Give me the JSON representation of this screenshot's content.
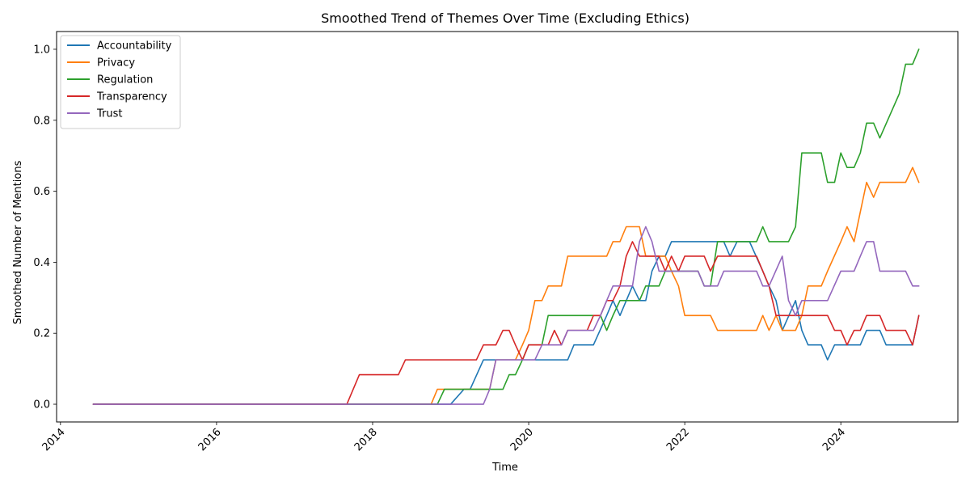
{
  "chart_data": {
    "type": "line",
    "title": "Smoothed Trend of Themes Over Time (Excluding Ethics)",
    "xlabel": "Time",
    "ylabel": "Smoothed Number of Mentions",
    "xlim": [
      2013.95,
      2025.5
    ],
    "ylim": [
      -0.05,
      1.05
    ],
    "x_ticks": [
      2014,
      2016,
      2018,
      2020,
      2022,
      2024
    ],
    "x_tick_labels": [
      "2014",
      "2016",
      "2018",
      "2020",
      "2022",
      "2024"
    ],
    "y_ticks": [
      0.0,
      0.2,
      0.4,
      0.6,
      0.8,
      1.0
    ],
    "y_tick_labels": [
      "0.0",
      "0.2",
      "0.4",
      "0.6",
      "0.8",
      "1.0"
    ],
    "grid": false,
    "legend_position": "top-left",
    "series": [
      {
        "name": "Accountability",
        "color": "#1f77b4",
        "points": [
          [
            2014.42,
            0
          ],
          [
            2018.83,
            0
          ],
          [
            2019.0,
            0
          ],
          [
            2019.17,
            0.042
          ],
          [
            2019.25,
            0.042
          ],
          [
            2019.42,
            0.125
          ],
          [
            2019.92,
            0.125
          ],
          [
            2020.0,
            0.125
          ],
          [
            2020.42,
            0.125
          ],
          [
            2020.5,
            0.125
          ],
          [
            2020.58,
            0.167
          ],
          [
            2020.83,
            0.167
          ],
          [
            2021.0,
            0.25
          ],
          [
            2021.08,
            0.292
          ],
          [
            2021.17,
            0.25
          ],
          [
            2021.33,
            0.333
          ],
          [
            2021.42,
            0.292
          ],
          [
            2021.5,
            0.292
          ],
          [
            2021.58,
            0.375
          ],
          [
            2021.67,
            0.417
          ],
          [
            2021.75,
            0.417
          ],
          [
            2021.83,
            0.458
          ],
          [
            2022.42,
            0.458
          ],
          [
            2022.5,
            0.458
          ],
          [
            2022.58,
            0.417
          ],
          [
            2022.67,
            0.458
          ],
          [
            2022.83,
            0.458
          ],
          [
            2023.0,
            0.375
          ],
          [
            2023.08,
            0.333
          ],
          [
            2023.17,
            0.292
          ],
          [
            2023.25,
            0.208
          ],
          [
            2023.42,
            0.292
          ],
          [
            2023.5,
            0.208
          ],
          [
            2023.58,
            0.167
          ],
          [
            2023.75,
            0.167
          ],
          [
            2023.83,
            0.125
          ],
          [
            2023.92,
            0.167
          ],
          [
            2024.25,
            0.167
          ],
          [
            2024.33,
            0.208
          ],
          [
            2024.5,
            0.208
          ],
          [
            2024.58,
            0.167
          ],
          [
            2024.92,
            0.167
          ],
          [
            2025.0,
            0.25
          ]
        ]
      },
      {
        "name": "Privacy",
        "color": "#ff7f0e",
        "points": [
          [
            2014.42,
            0
          ],
          [
            2018.75,
            0
          ],
          [
            2018.83,
            0.042
          ],
          [
            2019.5,
            0.042
          ],
          [
            2019.58,
            0.125
          ],
          [
            2019.83,
            0.125
          ],
          [
            2019.92,
            0.167
          ],
          [
            2020.0,
            0.208
          ],
          [
            2020.08,
            0.292
          ],
          [
            2020.17,
            0.292
          ],
          [
            2020.25,
            0.333
          ],
          [
            2020.42,
            0.333
          ],
          [
            2020.5,
            0.417
          ],
          [
            2021.0,
            0.417
          ],
          [
            2021.08,
            0.458
          ],
          [
            2021.17,
            0.458
          ],
          [
            2021.25,
            0.5
          ],
          [
            2021.42,
            0.5
          ],
          [
            2021.5,
            0.417
          ],
          [
            2021.75,
            0.417
          ],
          [
            2021.83,
            0.375
          ],
          [
            2021.92,
            0.333
          ],
          [
            2022.0,
            0.25
          ],
          [
            2022.33,
            0.25
          ],
          [
            2022.42,
            0.208
          ],
          [
            2022.92,
            0.208
          ],
          [
            2023.0,
            0.25
          ],
          [
            2023.08,
            0.208
          ],
          [
            2023.17,
            0.25
          ],
          [
            2023.25,
            0.208
          ],
          [
            2023.42,
            0.208
          ],
          [
            2023.5,
            0.25
          ],
          [
            2023.58,
            0.333
          ],
          [
            2023.75,
            0.333
          ],
          [
            2023.83,
            0.375
          ],
          [
            2024.0,
            0.458
          ],
          [
            2024.08,
            0.5
          ],
          [
            2024.17,
            0.458
          ],
          [
            2024.25,
            0.542
          ],
          [
            2024.33,
            0.625
          ],
          [
            2024.42,
            0.583
          ],
          [
            2024.5,
            0.625
          ],
          [
            2024.83,
            0.625
          ],
          [
            2024.92,
            0.667
          ],
          [
            2025.0,
            0.625
          ]
        ]
      },
      {
        "name": "Regulation",
        "color": "#2ca02c",
        "points": [
          [
            2014.42,
            0
          ],
          [
            2018.83,
            0
          ],
          [
            2018.92,
            0.042
          ],
          [
            2019.58,
            0.042
          ],
          [
            2019.67,
            0.042
          ],
          [
            2019.75,
            0.083
          ],
          [
            2019.83,
            0.083
          ],
          [
            2019.92,
            0.125
          ],
          [
            2020.0,
            0.167
          ],
          [
            2020.17,
            0.167
          ],
          [
            2020.25,
            0.25
          ],
          [
            2020.83,
            0.25
          ],
          [
            2020.92,
            0.25
          ],
          [
            2021.0,
            0.208
          ],
          [
            2021.08,
            0.25
          ],
          [
            2021.17,
            0.292
          ],
          [
            2021.42,
            0.292
          ],
          [
            2021.5,
            0.333
          ],
          [
            2021.67,
            0.333
          ],
          [
            2021.75,
            0.375
          ],
          [
            2022.17,
            0.375
          ],
          [
            2022.25,
            0.333
          ],
          [
            2022.33,
            0.333
          ],
          [
            2022.42,
            0.458
          ],
          [
            2022.92,
            0.458
          ],
          [
            2023.0,
            0.5
          ],
          [
            2023.08,
            0.458
          ],
          [
            2023.33,
            0.458
          ],
          [
            2023.42,
            0.5
          ],
          [
            2023.5,
            0.708
          ],
          [
            2023.75,
            0.708
          ],
          [
            2023.83,
            0.625
          ],
          [
            2023.92,
            0.625
          ],
          [
            2024.0,
            0.708
          ],
          [
            2024.08,
            0.667
          ],
          [
            2024.17,
            0.667
          ],
          [
            2024.25,
            0.708
          ],
          [
            2024.33,
            0.792
          ],
          [
            2024.42,
            0.792
          ],
          [
            2024.5,
            0.75
          ],
          [
            2024.75,
            0.875
          ],
          [
            2024.83,
            0.958
          ],
          [
            2024.92,
            0.958
          ],
          [
            2025.0,
            1.0
          ]
        ]
      },
      {
        "name": "Transparency",
        "color": "#d62728",
        "points": [
          [
            2014.42,
            0
          ],
          [
            2017.67,
            0
          ],
          [
            2017.83,
            0.083
          ],
          [
            2018.33,
            0.083
          ],
          [
            2018.42,
            0.125
          ],
          [
            2019.33,
            0.125
          ],
          [
            2019.42,
            0.167
          ],
          [
            2019.58,
            0.167
          ],
          [
            2019.67,
            0.208
          ],
          [
            2019.75,
            0.208
          ],
          [
            2019.83,
            0.167
          ],
          [
            2019.92,
            0.125
          ],
          [
            2020.0,
            0.167
          ],
          [
            2020.25,
            0.167
          ],
          [
            2020.33,
            0.208
          ],
          [
            2020.42,
            0.167
          ],
          [
            2020.5,
            0.208
          ],
          [
            2020.75,
            0.208
          ],
          [
            2020.83,
            0.25
          ],
          [
            2020.92,
            0.25
          ],
          [
            2021.0,
            0.292
          ],
          [
            2021.08,
            0.292
          ],
          [
            2021.17,
            0.333
          ],
          [
            2021.25,
            0.417
          ],
          [
            2021.33,
            0.458
          ],
          [
            2021.42,
            0.417
          ],
          [
            2021.67,
            0.417
          ],
          [
            2021.75,
            0.375
          ],
          [
            2021.83,
            0.417
          ],
          [
            2021.92,
            0.375
          ],
          [
            2022.0,
            0.417
          ],
          [
            2022.25,
            0.417
          ],
          [
            2022.33,
            0.375
          ],
          [
            2022.42,
            0.417
          ],
          [
            2022.92,
            0.417
          ],
          [
            2023.0,
            0.375
          ],
          [
            2023.08,
            0.333
          ],
          [
            2023.17,
            0.25
          ],
          [
            2023.83,
            0.25
          ],
          [
            2023.92,
            0.208
          ],
          [
            2024.0,
            0.208
          ],
          [
            2024.08,
            0.167
          ],
          [
            2024.17,
            0.208
          ],
          [
            2024.25,
            0.208
          ],
          [
            2024.33,
            0.25
          ],
          [
            2024.5,
            0.25
          ],
          [
            2024.58,
            0.208
          ],
          [
            2024.83,
            0.208
          ],
          [
            2024.92,
            0.167
          ],
          [
            2025.0,
            0.25
          ]
        ]
      },
      {
        "name": "Trust",
        "color": "#9467bd",
        "points": [
          [
            2014.42,
            0
          ],
          [
            2019.42,
            0
          ],
          [
            2019.5,
            0.042
          ],
          [
            2019.58,
            0.125
          ],
          [
            2019.67,
            0.125
          ],
          [
            2020.08,
            0.125
          ],
          [
            2020.17,
            0.167
          ],
          [
            2020.42,
            0.167
          ],
          [
            2020.5,
            0.208
          ],
          [
            2020.83,
            0.208
          ],
          [
            2020.92,
            0.25
          ],
          [
            2021.0,
            0.292
          ],
          [
            2021.08,
            0.333
          ],
          [
            2021.33,
            0.333
          ],
          [
            2021.42,
            0.458
          ],
          [
            2021.5,
            0.5
          ],
          [
            2021.58,
            0.458
          ],
          [
            2021.67,
            0.375
          ],
          [
            2022.08,
            0.375
          ],
          [
            2022.17,
            0.375
          ],
          [
            2022.25,
            0.333
          ],
          [
            2022.42,
            0.333
          ],
          [
            2022.5,
            0.375
          ],
          [
            2022.92,
            0.375
          ],
          [
            2023.0,
            0.333
          ],
          [
            2023.08,
            0.333
          ],
          [
            2023.25,
            0.417
          ],
          [
            2023.33,
            0.292
          ],
          [
            2023.42,
            0.25
          ],
          [
            2023.5,
            0.292
          ],
          [
            2023.83,
            0.292
          ],
          [
            2024.0,
            0.375
          ],
          [
            2024.17,
            0.375
          ],
          [
            2024.25,
            0.417
          ],
          [
            2024.33,
            0.458
          ],
          [
            2024.42,
            0.458
          ],
          [
            2024.5,
            0.375
          ],
          [
            2024.83,
            0.375
          ],
          [
            2024.92,
            0.333
          ],
          [
            2025.0,
            0.333
          ]
        ]
      }
    ]
  }
}
